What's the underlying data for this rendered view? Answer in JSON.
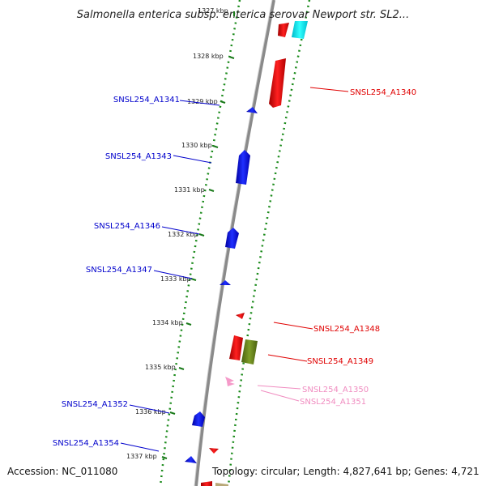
{
  "title": "Salmonella enterica subsp. enterica serovar Newport str. SL2...",
  "accession_text": "Accession: NC_011080",
  "topology_text": "Topology: circular; Length: 4,827,641 bp; Genes: 4,721",
  "kbp_labels": [
    "1327 kbp",
    "1328 kbp",
    "1329 kbp",
    "1330 kbp",
    "1331 kbp",
    "1332 kbp",
    "1333 kbp",
    "1334 kbp",
    "1335 kbp",
    "1336 kbp",
    "1337 kbp"
  ],
  "genes": [
    {
      "label": "SNSL254_A1340",
      "color": "#e00000"
    },
    {
      "label": "SNSL254_A1341",
      "color": "#0000cc"
    },
    {
      "label": "SNSL254_A1343",
      "color": "#0000cc"
    },
    {
      "label": "SNSL254_A1346",
      "color": "#0000cc"
    },
    {
      "label": "SNSL254_A1347",
      "color": "#0000cc"
    },
    {
      "label": "SNSL254_A1348",
      "color": "#e00000"
    },
    {
      "label": "SNSL254_A1349",
      "color": "#e00000"
    },
    {
      "label": "SNSL254_A1350",
      "color": "#f08cc0"
    },
    {
      "label": "SNSL254_A1351",
      "color": "#f08cc0"
    },
    {
      "label": "SNSL254_A1352",
      "color": "#0000cc"
    },
    {
      "label": "SNSL254_A1354",
      "color": "#0000cc"
    }
  ],
  "colors": {
    "forward_strand": "#e00000",
    "reverse_strand": "#0000ff",
    "tick_green": "#1a7a1a",
    "backbone": "#808080",
    "pink_gene": "#f08cc0",
    "olive_gene": "#6b8a1f",
    "cyan_gene": "#00e5ee"
  }
}
